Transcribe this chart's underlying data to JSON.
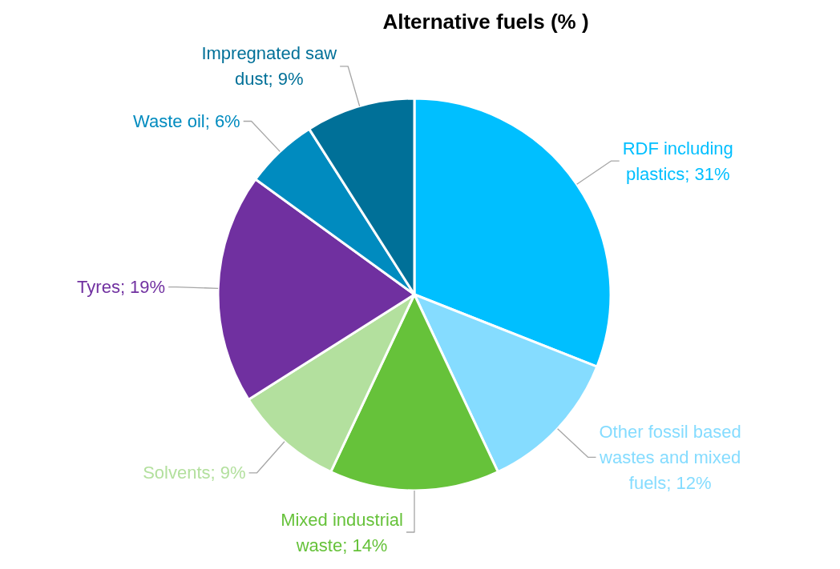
{
  "chart_data": {
    "type": "pie",
    "title": "Alternative fuels (% )",
    "categories": [
      "RDF including plastics",
      "Other fossil based wastes and mixed fuels",
      "Mixed industrial waste",
      "Solvents",
      "Tyres",
      "Waste oil",
      "Impregnated saw dust"
    ],
    "values": [
      31,
      12,
      14,
      9,
      19,
      6,
      9
    ],
    "colors": [
      "#00bfff",
      "#85dcff",
      "#66c23a",
      "#b3e09e",
      "#7030a0",
      "#008bbf",
      "#007098"
    ],
    "value_labels": [
      "31%",
      "12%",
      "14%",
      "9%",
      "19%",
      "6%",
      "9%"
    ]
  }
}
